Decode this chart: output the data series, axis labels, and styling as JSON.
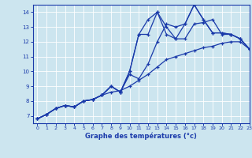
{
  "xlabel": "Graphe des températures (°c)",
  "bg_color": "#cce5ef",
  "line_color": "#1a3aaa",
  "grid_color": "#ffffff",
  "xlim": [
    -0.5,
    23
  ],
  "ylim": [
    6.5,
    14.5
  ],
  "xticks": [
    0,
    1,
    2,
    3,
    4,
    5,
    6,
    7,
    8,
    9,
    10,
    11,
    12,
    13,
    14,
    15,
    16,
    17,
    18,
    19,
    20,
    21,
    22,
    23
  ],
  "yticks": [
    7,
    8,
    9,
    10,
    11,
    12,
    13,
    14
  ],
  "series": [
    [
      6.8,
      7.1,
      7.5,
      7.7,
      7.6,
      8.0,
      8.1,
      8.4,
      8.6,
      8.7,
      9.0,
      9.4,
      9.8,
      10.3,
      10.8,
      11.0,
      11.2,
      11.4,
      11.6,
      11.7,
      11.9,
      12.0,
      12.0,
      11.5
    ],
    [
      6.8,
      7.1,
      7.5,
      7.7,
      7.6,
      8.0,
      8.1,
      8.4,
      9.0,
      8.6,
      10.0,
      12.5,
      13.5,
      14.0,
      13.0,
      12.2,
      12.2,
      13.2,
      13.3,
      13.5,
      12.5,
      12.5,
      12.2,
      11.5
    ],
    [
      6.8,
      7.1,
      7.5,
      7.7,
      7.6,
      8.0,
      8.1,
      8.4,
      9.0,
      8.6,
      9.8,
      9.5,
      10.5,
      12.0,
      13.2,
      13.0,
      13.2,
      14.5,
      13.5,
      12.6,
      12.6,
      12.5,
      12.2,
      11.5
    ],
    [
      6.8,
      7.1,
      7.5,
      7.7,
      7.6,
      8.0,
      8.1,
      8.4,
      9.0,
      8.6,
      10.0,
      12.5,
      12.5,
      14.0,
      12.5,
      12.2,
      13.2,
      14.5,
      13.5,
      12.6,
      12.6,
      12.5,
      12.2,
      11.5
    ]
  ]
}
